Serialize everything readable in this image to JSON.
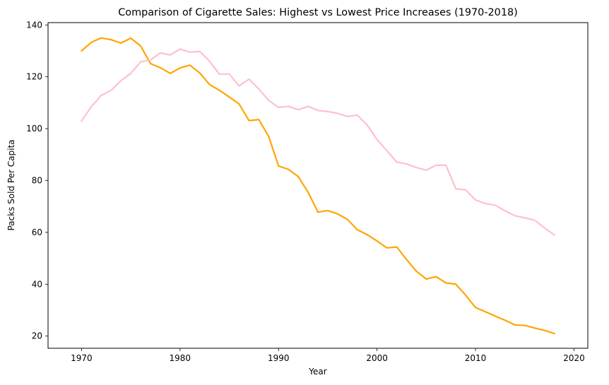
{
  "chart_data": {
    "type": "line",
    "title": "Comparison of Cigarette Sales: Highest vs Lowest Price Increases (1970-2018)",
    "xlabel": "Year",
    "ylabel": "Packs Sold Per Capita",
    "xlim": [
      1966.6,
      2021.4
    ],
    "ylim": [
      15.3,
      140.9
    ],
    "xticks": [
      1970,
      1980,
      1990,
      2000,
      2010,
      2020
    ],
    "yticks": [
      20,
      40,
      60,
      80,
      100,
      120,
      140
    ],
    "grid": false,
    "legend": "none",
    "x": [
      1970,
      1971,
      1972,
      1973,
      1974,
      1975,
      1976,
      1977,
      1978,
      1979,
      1980,
      1981,
      1982,
      1983,
      1984,
      1985,
      1986,
      1987,
      1988,
      1989,
      1990,
      1991,
      1992,
      1993,
      1994,
      1995,
      1996,
      1997,
      1998,
      1999,
      2000,
      2001,
      2002,
      2003,
      2004,
      2005,
      2006,
      2007,
      2008,
      2009,
      2010,
      2011,
      2012,
      2013,
      2014,
      2015,
      2016,
      2017,
      2018
    ],
    "series": [
      {
        "color": "#ffa500",
        "values": [
          130.0,
          133.3,
          135.0,
          134.3,
          133.0,
          134.9,
          131.9,
          125.1,
          123.5,
          121.3,
          123.4,
          124.5,
          121.5,
          117.0,
          114.8,
          112.2,
          109.5,
          103.1,
          103.5,
          97.0,
          85.6,
          84.3,
          81.5,
          75.5,
          67.8,
          68.4,
          67.1,
          65.0,
          61.0,
          59.1,
          56.7,
          54.0,
          54.4,
          49.5,
          45.0,
          42.0,
          42.9,
          40.5,
          40.0,
          35.8,
          31.0,
          29.4,
          27.7,
          26.1,
          24.3,
          24.1,
          23.1,
          22.2,
          21.0
        ]
      },
      {
        "color": "#ffc0cb",
        "values": [
          103.0,
          108.5,
          112.8,
          114.8,
          118.5,
          121.3,
          125.8,
          126.5,
          129.2,
          128.4,
          130.7,
          129.5,
          129.8,
          126.0,
          121.0,
          121.1,
          116.5,
          119.1,
          115.3,
          110.9,
          108.2,
          108.6,
          107.3,
          108.6,
          107.0,
          106.6,
          105.9,
          104.7,
          105.2,
          101.4,
          95.8,
          91.5,
          87.1,
          86.4,
          85.0,
          84.0,
          85.9,
          85.9,
          76.8,
          76.4,
          72.5,
          71.1,
          70.5,
          68.3,
          66.4,
          65.6,
          64.7,
          61.7,
          59.0
        ]
      }
    ]
  }
}
